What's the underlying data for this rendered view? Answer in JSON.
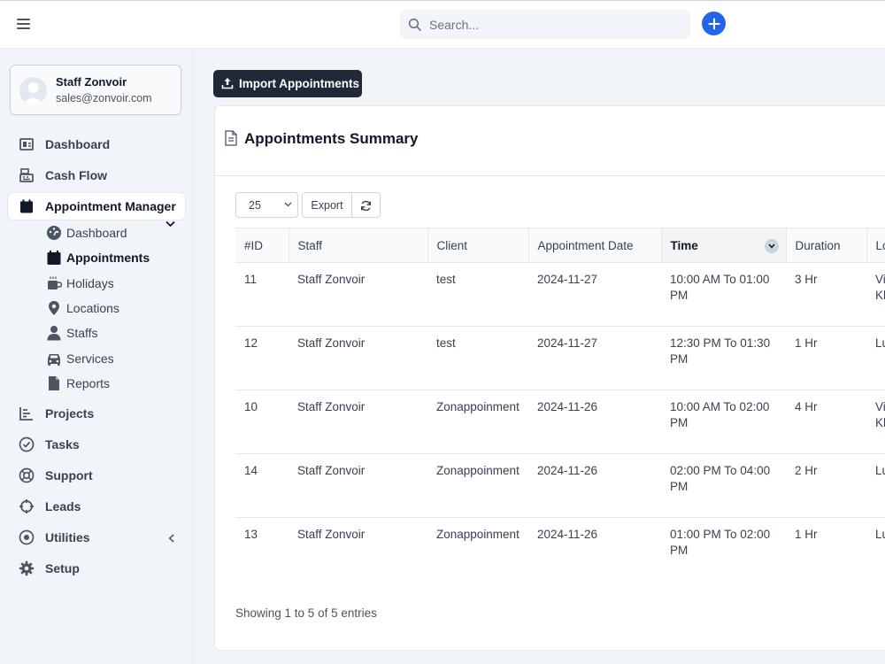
{
  "topbar": {
    "search_placeholder": "Search..."
  },
  "profile": {
    "name": "Staff Zonvoir",
    "email": "sales@zonvoir.com"
  },
  "nav": {
    "dashboard": "Dashboard",
    "cash_flow": "Cash Flow",
    "appointment_manager": "Appointment Manager",
    "sub": {
      "dashboard": "Dashboard",
      "appointments": "Appointments",
      "holidays": "Holidays",
      "locations": "Locations",
      "staffs": "Staffs",
      "services": "Services",
      "reports": "Reports"
    },
    "projects": "Projects",
    "tasks": "Tasks",
    "support": "Support",
    "leads": "Leads",
    "utilities": "Utilities",
    "setup": "Setup"
  },
  "main": {
    "import_label": "Import Appointments",
    "title": "Appointments Summary",
    "page_length": "25",
    "export_label": "Export",
    "columns": [
      "#ID",
      "Staff",
      "Client",
      "Appointment Date",
      "Time",
      "Duration",
      "Lo"
    ],
    "rows": [
      {
        "id": "11",
        "staff": "Staff Zonvoir",
        "client": "test",
        "date": "2024-11-27",
        "time": "10:00 AM To 01:00 PM",
        "duration": "3 Hr",
        "location": "Vi Kh"
      },
      {
        "id": "12",
        "staff": "Staff Zonvoir",
        "client": "test",
        "date": "2024-11-27",
        "time": "12:30 PM To 01:30 PM",
        "duration": "1 Hr",
        "location": "Lu"
      },
      {
        "id": "10",
        "staff": "Staff Zonvoir",
        "client": "Zonappoinment",
        "date": "2024-11-26",
        "time": "10:00 AM To 02:00 PM",
        "duration": "4 Hr",
        "location": "Vi Kh"
      },
      {
        "id": "14",
        "staff": "Staff Zonvoir",
        "client": "Zonappoinment",
        "date": "2024-11-26",
        "time": "02:00 PM To 04:00 PM",
        "duration": "2 Hr",
        "location": "Lu"
      },
      {
        "id": "13",
        "staff": "Staff Zonvoir",
        "client": "Zonappoinment",
        "date": "2024-11-26",
        "time": "01:00 PM To 02:00 PM",
        "duration": "1 Hr",
        "location": "Lu"
      }
    ],
    "footer_info": "Showing 1 to 5 of 5 entries"
  }
}
